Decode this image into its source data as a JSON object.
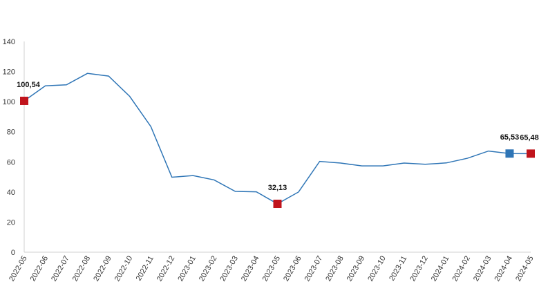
{
  "chart_data": {
    "type": "line",
    "x": [
      "2022-05",
      "2022-06",
      "2022-07",
      "2022-08",
      "2022-09",
      "2022-10",
      "2022-11",
      "2022-12",
      "2023-01",
      "2023-02",
      "2023-03",
      "2023-04",
      "2023-05",
      "2023-06",
      "2023-07",
      "2023-08",
      "2023-09",
      "2023-10",
      "2023-11",
      "2023-12",
      "2024-01",
      "2024-02",
      "2024-03",
      "2024-04",
      "2024-05"
    ],
    "series": [
      {
        "values": [
          100.54,
          110.5,
          111.2,
          118.8,
          117.0,
          103.5,
          83.5,
          49.8,
          50.9,
          48.0,
          40.4,
          40.1,
          32.13,
          40.0,
          60.3,
          59.2,
          57.3,
          57.3,
          59.2,
          58.4,
          59.3,
          62.4,
          67.2,
          65.53,
          65.48
        ],
        "color": "#2e75b6"
      }
    ],
    "markers": [
      {
        "index": 0,
        "label": "100,54",
        "color": "#c0141c"
      },
      {
        "index": 12,
        "label": "32,13",
        "color": "#c0141c"
      },
      {
        "index": 23,
        "label": "65,53",
        "color": "#2e75b6"
      },
      {
        "index": 24,
        "label": "65,48",
        "color": "#c0141c"
      }
    ],
    "yticks": [
      "0",
      "20",
      "40",
      "60",
      "80",
      "100",
      "120",
      "140"
    ],
    "ylim": [
      0,
      140
    ],
    "grid": false,
    "title": "",
    "xlabel": "",
    "ylabel": ""
  }
}
